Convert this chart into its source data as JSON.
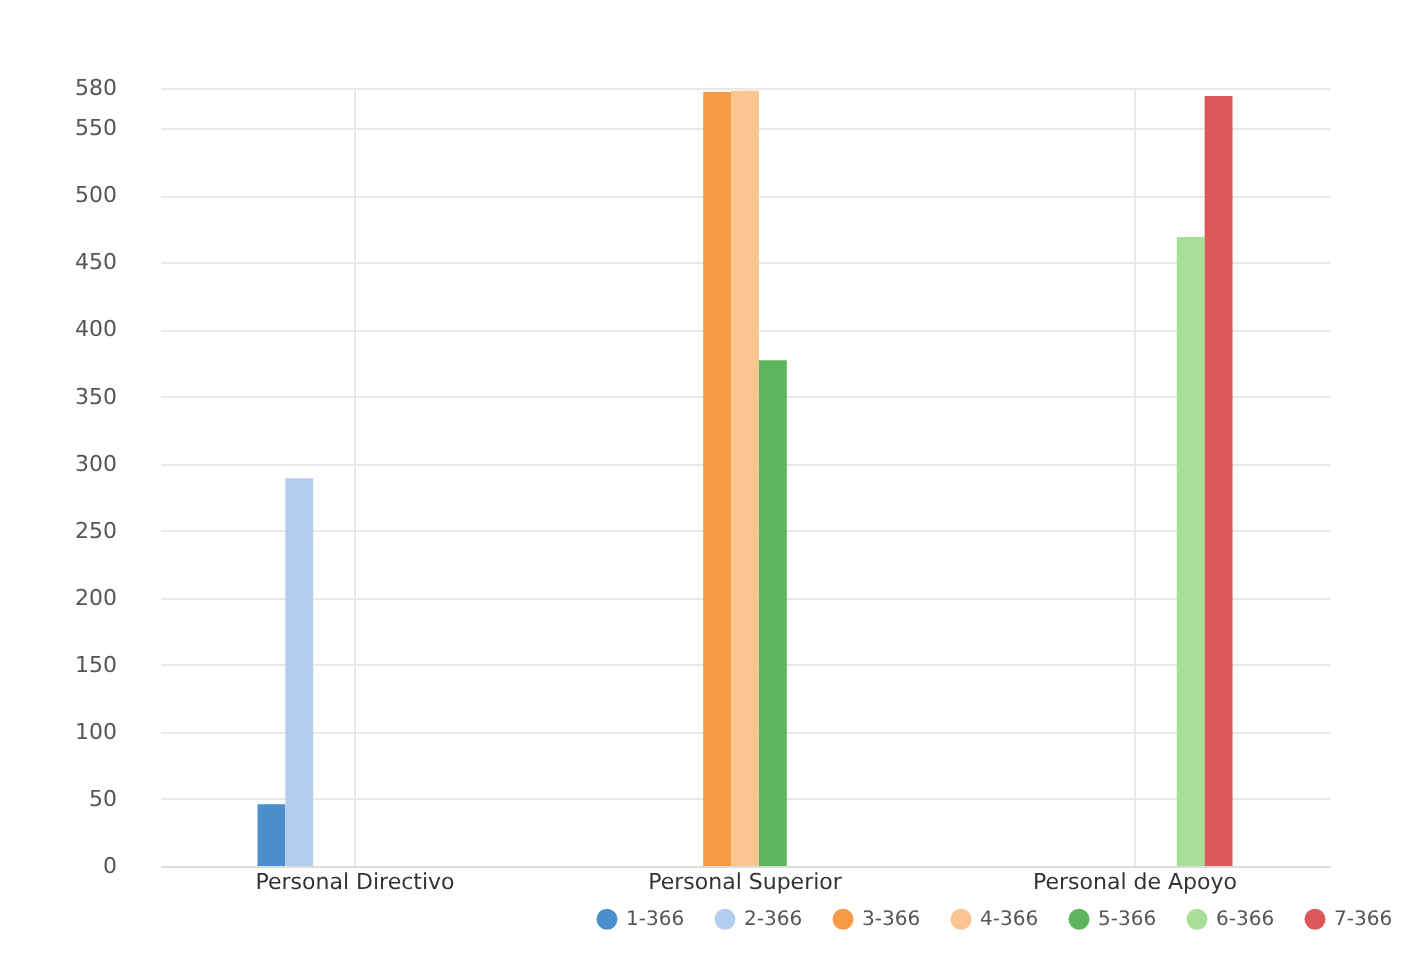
{
  "chart_data": {
    "type": "bar",
    "categories": [
      "Personal Directivo",
      "Personal Superior",
      "Personal de Apoyo"
    ],
    "series": [
      {
        "name": "1-366",
        "color": "#4a8fcb",
        "values": [
          46,
          null,
          null
        ]
      },
      {
        "name": "2-366",
        "color": "#b5cdec",
        "values": [
          289,
          null,
          null
        ]
      },
      {
        "name": "3-366",
        "color": "#f79a45",
        "values": [
          null,
          577,
          null
        ]
      },
      {
        "name": "4-366",
        "color": "#fbc592",
        "values": [
          null,
          578,
          null
        ]
      },
      {
        "name": "5-366",
        "color": "#5db55d",
        "values": [
          null,
          377,
          null
        ]
      },
      {
        "name": "6-366",
        "color": "#a8df98",
        "values": [
          null,
          null,
          469
        ]
      },
      {
        "name": "7-366",
        "color": "#dc5858",
        "values": [
          null,
          null,
          574
        ]
      }
    ],
    "ylim": [
      0,
      580
    ],
    "yticks": [
      0,
      50,
      100,
      150,
      200,
      250,
      300,
      350,
      400,
      450,
      500,
      550,
      580
    ],
    "grid": true,
    "legend": "bottom right"
  }
}
